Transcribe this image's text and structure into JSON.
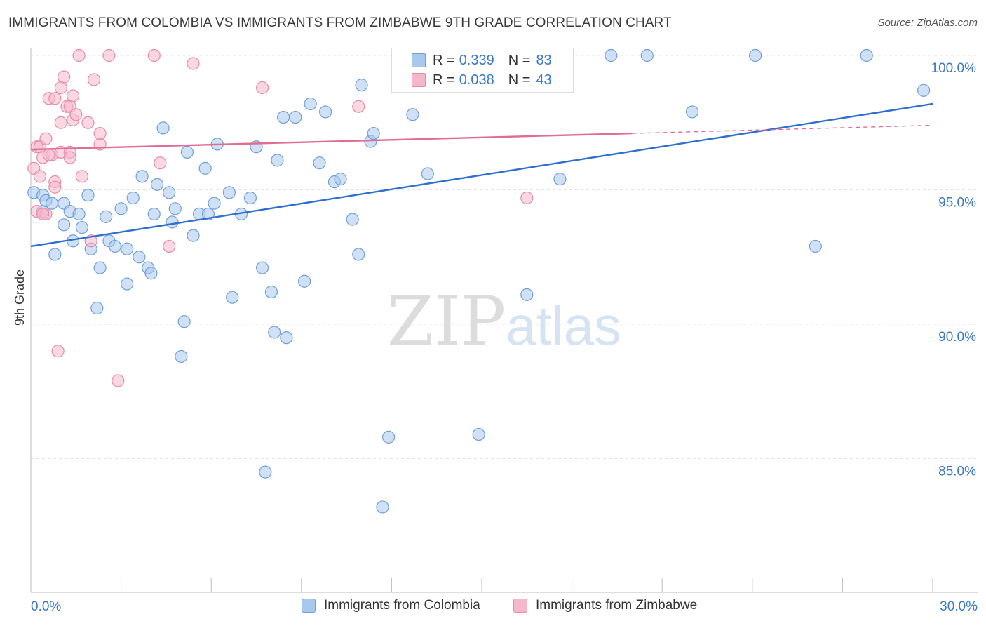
{
  "header": {
    "title": "IMMIGRANTS FROM COLOMBIA VS IMMIGRANTS FROM ZIMBABWE 9TH GRADE CORRELATION CHART",
    "source": "Source: ZipAtlas.com"
  },
  "legend": {
    "rows": [
      {
        "r_label": "R =",
        "r_value": "0.339",
        "n_label": "N =",
        "n_value": "83",
        "color": "#a9c8ee"
      },
      {
        "r_label": "R =",
        "r_value": "0.038",
        "n_label": "N =",
        "n_value": "43",
        "color": "#f5b8cb"
      }
    ]
  },
  "bottom_legend": {
    "items": [
      {
        "label": "Immigrants from Colombia",
        "color": "#a9c8ee"
      },
      {
        "label": "Immigrants from Zimbabwe",
        "color": "#f5b8cb"
      }
    ]
  },
  "watermark": {
    "zip": "ZIP",
    "atlas": "atlas"
  },
  "chart_data": {
    "type": "scatter",
    "title": "IMMIGRANTS FROM COLOMBIA VS IMMIGRANTS FROM ZIMBABWE 9TH GRADE CORRELATION CHART",
    "xlabel": "",
    "ylabel": "9th Grade",
    "xlim": [
      0,
      30
    ],
    "ylim": [
      80.5,
      101
    ],
    "x_tick_labels": [
      "0.0%",
      "30.0%"
    ],
    "y_ticks": [
      {
        "value": 100,
        "label": "100.0%"
      },
      {
        "value": 95,
        "label": "95.0%"
      },
      {
        "value": 90,
        "label": "90.0%"
      },
      {
        "value": 85,
        "label": "85.0%"
      }
    ],
    "grid": true,
    "legend_placement": "top-center",
    "series": [
      {
        "name": "Immigrants from Colombia",
        "color": "#6f9fd8",
        "fill": "#a9c8ee",
        "trend": {
          "x": [
            0,
            30
          ],
          "y": [
            92.9,
            98.2
          ],
          "color": "#2e6fcf"
        },
        "points": [
          [
            0.1,
            94.9
          ],
          [
            0.4,
            94.2
          ],
          [
            0.4,
            94.8
          ],
          [
            0.5,
            94.6
          ],
          [
            0.7,
            94.5
          ],
          [
            0.8,
            92.6
          ],
          [
            1.1,
            94.5
          ],
          [
            1.1,
            93.7
          ],
          [
            1.3,
            94.2
          ],
          [
            1.4,
            93.1
          ],
          [
            1.6,
            94.1
          ],
          [
            1.7,
            93.6
          ],
          [
            1.9,
            94.8
          ],
          [
            2.0,
            92.8
          ],
          [
            2.2,
            90.6
          ],
          [
            2.3,
            92.1
          ],
          [
            2.5,
            94.0
          ],
          [
            2.6,
            93.1
          ],
          [
            2.8,
            92.9
          ],
          [
            3.0,
            94.3
          ],
          [
            3.2,
            91.5
          ],
          [
            3.2,
            92.8
          ],
          [
            3.4,
            94.7
          ],
          [
            3.6,
            92.5
          ],
          [
            3.7,
            95.5
          ],
          [
            3.9,
            92.1
          ],
          [
            4.0,
            91.9
          ],
          [
            4.1,
            94.1
          ],
          [
            4.2,
            95.2
          ],
          [
            4.4,
            97.3
          ],
          [
            4.6,
            94.9
          ],
          [
            4.7,
            93.8
          ],
          [
            4.8,
            94.3
          ],
          [
            5.0,
            88.8
          ],
          [
            5.1,
            90.1
          ],
          [
            5.2,
            96.4
          ],
          [
            5.4,
            93.3
          ],
          [
            5.6,
            94.1
          ],
          [
            5.8,
            95.8
          ],
          [
            5.9,
            94.1
          ],
          [
            6.1,
            94.5
          ],
          [
            6.2,
            96.7
          ],
          [
            6.6,
            94.9
          ],
          [
            6.7,
            91.0
          ],
          [
            7.0,
            94.1
          ],
          [
            7.3,
            94.7
          ],
          [
            7.5,
            96.6
          ],
          [
            7.7,
            92.1
          ],
          [
            7.8,
            84.5
          ],
          [
            8.0,
            91.2
          ],
          [
            8.1,
            89.7
          ],
          [
            8.2,
            96.1
          ],
          [
            8.4,
            97.7
          ],
          [
            8.5,
            89.5
          ],
          [
            8.8,
            97.7
          ],
          [
            9.1,
            91.6
          ],
          [
            9.3,
            98.2
          ],
          [
            9.6,
            96.0
          ],
          [
            9.8,
            97.9
          ],
          [
            10.1,
            95.3
          ],
          [
            10.3,
            95.4
          ],
          [
            10.7,
            93.9
          ],
          [
            10.9,
            92.6
          ],
          [
            11.0,
            98.9
          ],
          [
            11.3,
            96.8
          ],
          [
            11.4,
            97.1
          ],
          [
            11.7,
            83.2
          ],
          [
            11.9,
            85.8
          ],
          [
            12.3,
            100.0
          ],
          [
            12.7,
            97.8
          ],
          [
            13.2,
            95.6
          ],
          [
            14.0,
            100.0
          ],
          [
            14.9,
            85.9
          ],
          [
            15.1,
            100.0
          ],
          [
            16.5,
            91.1
          ],
          [
            17.6,
            95.4
          ],
          [
            19.3,
            100.0
          ],
          [
            20.5,
            100.0
          ],
          [
            22.0,
            97.9
          ],
          [
            24.1,
            100.0
          ],
          [
            26.1,
            92.9
          ],
          [
            27.8,
            100.0
          ],
          [
            29.7,
            98.7
          ]
        ]
      },
      {
        "name": "Immigrants from Zimbabwe",
        "color": "#e88aa8",
        "fill": "#f5b8cb",
        "trend": {
          "x": [
            0,
            20
          ],
          "y": [
            96.5,
            97.1
          ],
          "dash_to": [
            30,
            97.4
          ],
          "color": "#e06c94"
        },
        "points": [
          [
            0.1,
            95.8
          ],
          [
            0.2,
            96.6
          ],
          [
            0.2,
            94.2
          ],
          [
            0.3,
            95.5
          ],
          [
            0.3,
            96.6
          ],
          [
            0.4,
            96.2
          ],
          [
            0.5,
            94.1
          ],
          [
            0.5,
            96.9
          ],
          [
            0.6,
            98.4
          ],
          [
            0.7,
            96.3
          ],
          [
            0.8,
            98.4
          ],
          [
            0.8,
            95.3
          ],
          [
            0.8,
            95.1
          ],
          [
            0.9,
            89.0
          ],
          [
            1.0,
            96.4
          ],
          [
            1.0,
            97.5
          ],
          [
            1.0,
            98.8
          ],
          [
            1.1,
            99.2
          ],
          [
            1.2,
            98.1
          ],
          [
            1.3,
            96.4
          ],
          [
            1.3,
            98.1
          ],
          [
            1.3,
            96.2
          ],
          [
            1.4,
            98.5
          ],
          [
            1.4,
            97.6
          ],
          [
            1.5,
            97.8
          ],
          [
            1.6,
            100.0
          ],
          [
            1.7,
            95.5
          ],
          [
            1.9,
            97.5
          ],
          [
            2.0,
            93.1
          ],
          [
            2.1,
            99.1
          ],
          [
            2.3,
            96.7
          ],
          [
            2.3,
            97.1
          ],
          [
            2.6,
            100.0
          ],
          [
            2.9,
            87.9
          ],
          [
            4.1,
            100.0
          ],
          [
            4.3,
            96.0
          ],
          [
            4.6,
            92.9
          ],
          [
            5.4,
            99.7
          ],
          [
            7.7,
            98.8
          ],
          [
            10.9,
            98.1
          ],
          [
            16.5,
            94.7
          ],
          [
            0.6,
            96.3
          ],
          [
            0.4,
            94.1
          ]
        ]
      }
    ]
  }
}
